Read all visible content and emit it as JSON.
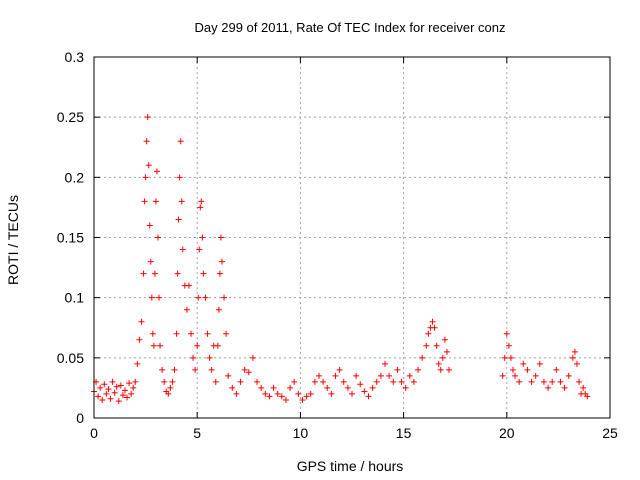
{
  "chart_data": {
    "type": "scatter",
    "title": "Day 299 of 2011, Rate Of TEC Index for receiver conz",
    "xlabel": "GPS time / hours",
    "ylabel": "ROTI / TECUs",
    "xlim": [
      0,
      25
    ],
    "ylim": [
      0,
      0.3
    ],
    "x_ticks": [
      0,
      5,
      10,
      15,
      20,
      25
    ],
    "y_ticks": [
      0,
      0.05,
      0.1,
      0.15,
      0.2,
      0.25,
      0.3
    ],
    "x_tick_labels": [
      "0",
      "5",
      "10",
      "15",
      "20",
      "25"
    ],
    "y_tick_labels": [
      "0",
      "0.05",
      "0.1",
      "0.15",
      "0.2",
      "0.25",
      "0.3"
    ],
    "grid": true,
    "marker": "+",
    "marker_color": "#ff0000",
    "series": [
      {
        "points": [
          [
            0.0,
            0.022
          ],
          [
            0.1,
            0.03
          ],
          [
            0.2,
            0.018
          ],
          [
            0.3,
            0.025
          ],
          [
            0.4,
            0.015
          ],
          [
            0.5,
            0.028
          ],
          [
            0.6,
            0.02
          ],
          [
            0.7,
            0.024
          ],
          [
            0.8,
            0.016
          ],
          [
            0.9,
            0.03
          ],
          [
            1.0,
            0.021
          ],
          [
            1.1,
            0.026
          ],
          [
            1.2,
            0.014
          ],
          [
            1.3,
            0.027
          ],
          [
            1.4,
            0.019
          ],
          [
            1.5,
            0.023
          ],
          [
            1.6,
            0.017
          ],
          [
            1.7,
            0.029
          ],
          [
            1.8,
            0.02
          ],
          [
            1.9,
            0.025
          ],
          [
            2.0,
            0.03
          ],
          [
            2.1,
            0.045
          ],
          [
            2.2,
            0.065
          ],
          [
            2.3,
            0.08
          ],
          [
            2.4,
            0.12
          ],
          [
            2.45,
            0.18
          ],
          [
            2.5,
            0.2
          ],
          [
            2.55,
            0.23
          ],
          [
            2.6,
            0.25
          ],
          [
            2.65,
            0.21
          ],
          [
            2.7,
            0.16
          ],
          [
            2.75,
            0.13
          ],
          [
            2.8,
            0.1
          ],
          [
            2.85,
            0.07
          ],
          [
            2.9,
            0.06
          ],
          [
            2.95,
            0.12
          ],
          [
            3.0,
            0.18
          ],
          [
            3.05,
            0.205
          ],
          [
            3.1,
            0.15
          ],
          [
            3.15,
            0.1
          ],
          [
            3.2,
            0.06
          ],
          [
            3.3,
            0.04
          ],
          [
            3.4,
            0.03
          ],
          [
            3.5,
            0.022
          ],
          [
            3.6,
            0.02
          ],
          [
            3.7,
            0.025
          ],
          [
            3.8,
            0.03
          ],
          [
            3.9,
            0.04
          ],
          [
            4.0,
            0.07
          ],
          [
            4.05,
            0.12
          ],
          [
            4.1,
            0.165
          ],
          [
            4.15,
            0.2
          ],
          [
            4.2,
            0.23
          ],
          [
            4.25,
            0.18
          ],
          [
            4.3,
            0.14
          ],
          [
            4.4,
            0.11
          ],
          [
            4.5,
            0.09
          ],
          [
            4.6,
            0.11
          ],
          [
            4.7,
            0.07
          ],
          [
            4.8,
            0.05
          ],
          [
            4.9,
            0.04
          ],
          [
            5.0,
            0.06
          ],
          [
            5.05,
            0.1
          ],
          [
            5.1,
            0.14
          ],
          [
            5.15,
            0.175
          ],
          [
            5.2,
            0.18
          ],
          [
            5.25,
            0.15
          ],
          [
            5.3,
            0.12
          ],
          [
            5.4,
            0.1
          ],
          [
            5.5,
            0.07
          ],
          [
            5.6,
            0.05
          ],
          [
            5.7,
            0.04
          ],
          [
            5.8,
            0.06
          ],
          [
            5.9,
            0.03
          ],
          [
            6.0,
            0.06
          ],
          [
            6.05,
            0.09
          ],
          [
            6.1,
            0.12
          ],
          [
            6.15,
            0.15
          ],
          [
            6.2,
            0.13
          ],
          [
            6.3,
            0.1
          ],
          [
            6.4,
            0.07
          ],
          [
            6.5,
            0.035
          ],
          [
            6.7,
            0.025
          ],
          [
            6.9,
            0.02
          ],
          [
            7.1,
            0.03
          ],
          [
            7.3,
            0.04
          ],
          [
            7.5,
            0.038
          ],
          [
            7.7,
            0.05
          ],
          [
            7.9,
            0.03
          ],
          [
            8.1,
            0.025
          ],
          [
            8.3,
            0.02
          ],
          [
            8.5,
            0.018
          ],
          [
            8.7,
            0.025
          ],
          [
            8.9,
            0.02
          ],
          [
            9.1,
            0.018
          ],
          [
            9.3,
            0.015
          ],
          [
            9.5,
            0.025
          ],
          [
            9.7,
            0.03
          ],
          [
            9.9,
            0.02
          ],
          [
            10.1,
            0.015
          ],
          [
            10.3,
            0.018
          ],
          [
            10.5,
            0.02
          ],
          [
            10.7,
            0.03
          ],
          [
            10.9,
            0.035
          ],
          [
            11.1,
            0.03
          ],
          [
            11.3,
            0.025
          ],
          [
            11.5,
            0.02
          ],
          [
            11.7,
            0.035
          ],
          [
            11.9,
            0.04
          ],
          [
            12.1,
            0.03
          ],
          [
            12.3,
            0.025
          ],
          [
            12.5,
            0.02
          ],
          [
            12.7,
            0.035
          ],
          [
            12.9,
            0.028
          ],
          [
            13.1,
            0.022
          ],
          [
            13.3,
            0.018
          ],
          [
            13.5,
            0.025
          ],
          [
            13.7,
            0.03
          ],
          [
            13.9,
            0.035
          ],
          [
            14.1,
            0.045
          ],
          [
            14.3,
            0.035
          ],
          [
            14.5,
            0.03
          ],
          [
            14.7,
            0.04
          ],
          [
            14.9,
            0.03
          ],
          [
            15.1,
            0.025
          ],
          [
            15.3,
            0.035
          ],
          [
            15.5,
            0.03
          ],
          [
            15.7,
            0.04
          ],
          [
            15.9,
            0.05
          ],
          [
            16.1,
            0.06
          ],
          [
            16.2,
            0.07
          ],
          [
            16.3,
            0.075
          ],
          [
            16.4,
            0.08
          ],
          [
            16.5,
            0.075
          ],
          [
            16.6,
            0.06
          ],
          [
            16.7,
            0.045
          ],
          [
            16.8,
            0.04
          ],
          [
            16.9,
            0.05
          ],
          [
            17.0,
            0.065
          ],
          [
            17.1,
            0.055
          ],
          [
            17.2,
            0.04
          ],
          [
            19.8,
            0.035
          ],
          [
            19.9,
            0.05
          ],
          [
            20.0,
            0.07
          ],
          [
            20.1,
            0.06
          ],
          [
            20.2,
            0.05
          ],
          [
            20.3,
            0.04
          ],
          [
            20.4,
            0.035
          ],
          [
            20.6,
            0.03
          ],
          [
            20.8,
            0.045
          ],
          [
            21.0,
            0.04
          ],
          [
            21.2,
            0.03
          ],
          [
            21.4,
            0.035
          ],
          [
            21.6,
            0.045
          ],
          [
            21.8,
            0.03
          ],
          [
            22.0,
            0.025
          ],
          [
            22.2,
            0.03
          ],
          [
            22.4,
            0.04
          ],
          [
            22.6,
            0.03
          ],
          [
            22.8,
            0.025
          ],
          [
            23.0,
            0.035
          ],
          [
            23.2,
            0.05
          ],
          [
            23.3,
            0.055
          ],
          [
            23.4,
            0.045
          ],
          [
            23.5,
            0.03
          ],
          [
            23.6,
            0.02
          ],
          [
            23.7,
            0.025
          ],
          [
            23.8,
            0.02
          ],
          [
            23.9,
            0.018
          ]
        ]
      }
    ]
  }
}
